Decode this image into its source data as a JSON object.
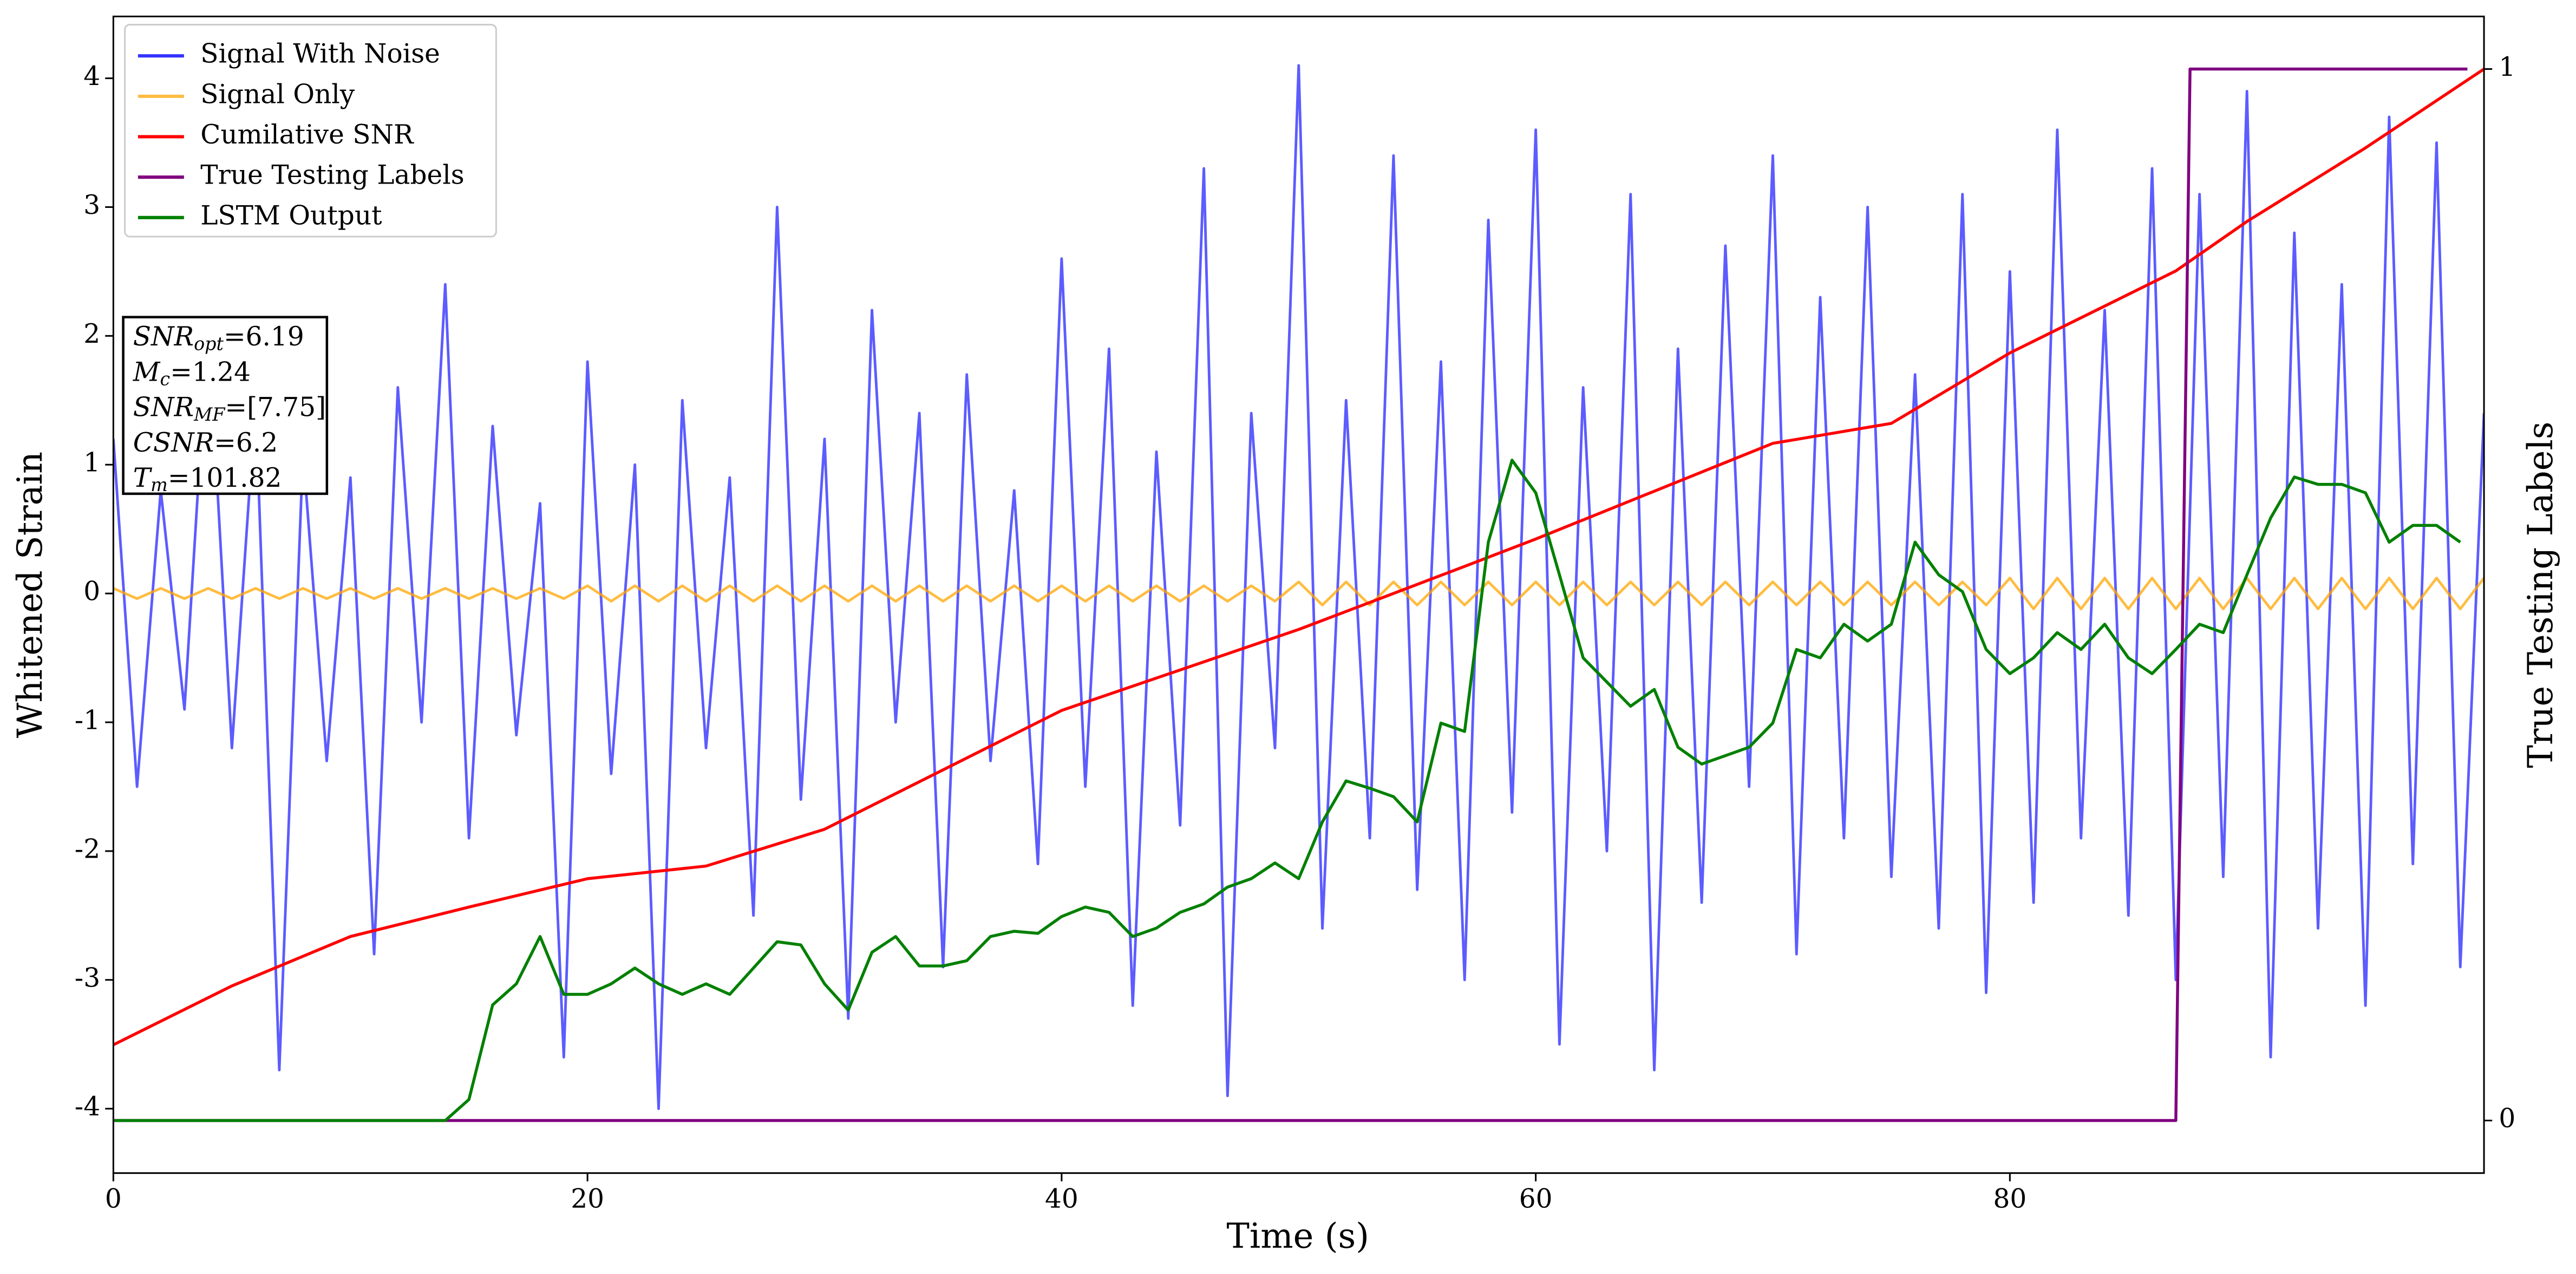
{
  "chart_data": {
    "type": "line",
    "xlabel": "Time (s)",
    "ylabel": "Whitened Strain",
    "y2label": "True Testing Labels",
    "xlim": [
      0,
      100
    ],
    "xticks": [
      0,
      20,
      40,
      60,
      80
    ],
    "ylim": [
      -4.5,
      4.48
    ],
    "yticks": [
      -4,
      -3,
      -2,
      -1,
      0,
      1,
      2,
      3,
      4
    ],
    "y2lim": [
      -0.05,
      1.05
    ],
    "y2ticks": [
      0,
      1
    ],
    "legend": "upper left",
    "x": [
      0,
      1,
      2,
      3,
      4,
      5,
      6,
      7,
      8,
      9,
      10,
      11,
      12,
      13,
      14,
      15,
      16,
      17,
      18,
      19,
      20,
      21,
      22,
      23,
      24,
      25,
      26,
      27,
      28,
      29,
      30,
      31,
      32,
      33,
      34,
      35,
      36,
      37,
      38,
      39,
      40,
      41,
      42,
      43,
      44,
      45,
      46,
      47,
      48,
      49,
      50,
      51,
      52,
      53,
      54,
      55,
      56,
      57,
      58,
      59,
      60,
      61,
      62,
      63,
      64,
      65,
      66,
      67,
      68,
      69,
      70,
      71,
      72,
      73,
      74,
      75,
      76,
      77,
      78,
      79,
      80,
      81,
      82,
      83,
      84,
      85,
      86,
      87,
      88,
      89,
      90,
      91,
      92,
      93,
      94,
      95,
      96,
      97,
      98,
      99,
      100
    ],
    "series": [
      {
        "name": "Signal With Noise",
        "color": "#3333ff",
        "values": [
          1.2,
          -1.5,
          0.8,
          -0.9,
          2.1,
          -1.2,
          1.5,
          -3.7,
          1.1,
          -1.3,
          0.9,
          -2.8,
          1.6,
          -1.0,
          2.4,
          -1.9,
          1.3,
          -1.1,
          0.7,
          -3.6,
          1.8,
          -1.4,
          1.0,
          -4.0,
          1.5,
          -1.2,
          0.9,
          -2.5,
          3.0,
          -1.6,
          1.2,
          -3.3,
          2.2,
          -1.0,
          1.4,
          -2.9,
          1.7,
          -1.3,
          0.8,
          -2.1,
          2.6,
          -1.5,
          1.9,
          -3.2,
          1.1,
          -1.8,
          3.3,
          -3.9,
          1.4,
          -1.2,
          4.1,
          -2.6,
          1.5,
          -1.9,
          3.4,
          -2.3,
          1.8,
          -3.0,
          2.9,
          -1.7,
          3.6,
          -3.5,
          1.6,
          -2.0,
          3.1,
          -3.7,
          1.9,
          -2.4,
          2.7,
          -1.5,
          3.4,
          -2.8,
          2.3,
          -1.9,
          3.0,
          -2.2,
          1.7,
          -2.6,
          3.1,
          -3.1,
          2.5,
          -2.4,
          3.6,
          -1.9,
          2.2,
          -2.5,
          3.3,
          -3.0,
          3.1,
          -2.2,
          3.9,
          -3.6,
          2.8,
          -2.6,
          2.4,
          -3.2,
          3.7,
          -2.1,
          3.5,
          -2.9,
          1.4
        ]
      },
      {
        "name": "Signal Only",
        "color": "#ffa500",
        "values": [
          0.04,
          -0.04,
          0.04,
          -0.04,
          0.04,
          -0.04,
          0.04,
          -0.04,
          0.04,
          -0.04,
          0.04,
          -0.04,
          0.04,
          -0.04,
          0.04,
          -0.04,
          0.04,
          -0.04,
          0.04,
          -0.04,
          0.06,
          -0.06,
          0.06,
          -0.06,
          0.06,
          -0.06,
          0.06,
          -0.06,
          0.06,
          -0.06,
          0.06,
          -0.06,
          0.06,
          -0.06,
          0.06,
          -0.06,
          0.06,
          -0.06,
          0.06,
          -0.06,
          0.06,
          -0.06,
          0.06,
          -0.06,
          0.06,
          -0.06,
          0.06,
          -0.06,
          0.06,
          -0.06,
          0.09,
          -0.09,
          0.09,
          -0.09,
          0.09,
          -0.09,
          0.09,
          -0.09,
          0.09,
          -0.09,
          0.09,
          -0.09,
          0.09,
          -0.09,
          0.09,
          -0.09,
          0.09,
          -0.09,
          0.09,
          -0.09,
          0.09,
          -0.09,
          0.09,
          -0.09,
          0.09,
          -0.09,
          0.09,
          -0.09,
          0.09,
          -0.09,
          0.12,
          -0.12,
          0.12,
          -0.12,
          0.12,
          -0.12,
          0.12,
          -0.12,
          0.12,
          -0.12,
          0.12,
          -0.12,
          0.12,
          -0.12,
          0.12,
          -0.12,
          0.12,
          -0.12,
          0.12,
          -0.12,
          0.12
        ]
      },
      {
        "name": "Cumilative SNR",
        "color": "#ff0000",
        "axis": "y2",
        "x": [
          0,
          5,
          10,
          15,
          20,
          25,
          30,
          40,
          50,
          57,
          60,
          70,
          75,
          80,
          87,
          90,
          95,
          100
        ],
        "values": [
          0.072,
          0.128,
          0.175,
          0.203,
          0.23,
          0.242,
          0.277,
          0.39,
          0.467,
          0.527,
          0.553,
          0.644,
          0.663,
          0.73,
          0.808,
          0.855,
          0.925,
          1.0
        ]
      },
      {
        "name": "True Testing Labels",
        "color": "#800080",
        "axis": "y2",
        "x": [
          0,
          87,
          87.6,
          99.3
        ],
        "values": [
          0,
          0,
          1,
          1
        ]
      },
      {
        "name": "LSTM Output",
        "color": "#008000",
        "axis": "y2",
        "values": [
          0,
          0,
          0,
          0,
          0,
          0,
          0,
          0,
          0,
          0,
          0,
          0,
          0,
          0,
          0,
          0.02,
          0.11,
          0.13,
          0.175,
          0.12,
          0.12,
          0.13,
          0.145,
          0.13,
          0.12,
          0.13,
          0.12,
          0.145,
          0.17,
          0.167,
          0.13,
          0.105,
          0.16,
          0.175,
          0.147,
          0.147,
          0.152,
          0.175,
          0.18,
          0.178,
          0.194,
          0.203,
          0.198,
          0.175,
          0.183,
          0.198,
          0.206,
          0.222,
          0.23,
          0.245,
          0.23,
          0.284,
          0.323,
          0.316,
          0.308,
          0.284,
          0.378,
          0.37,
          0.55,
          0.628,
          0.597,
          0.519,
          0.44,
          0.417,
          0.394,
          0.41,
          0.355,
          0.339,
          0.347,
          0.355,
          0.378,
          0.448,
          0.44,
          0.472,
          0.456,
          0.472,
          0.55,
          0.519,
          0.503,
          0.448,
          0.425,
          0.44,
          0.464,
          0.448,
          0.472,
          0.44,
          0.425,
          0.448,
          0.472,
          0.464,
          0.519,
          0.573,
          0.612,
          0.605,
          0.605,
          0.597,
          0.55,
          0.566,
          0.566,
          0.55,
          null
        ]
      }
    ],
    "annotation": [
      {
        "main": "SNR",
        "sub": "opt",
        "rest": "=6.19"
      },
      {
        "main": "M",
        "sub": "c",
        "rest": "=1.24"
      },
      {
        "main": "SNR",
        "sub": "MF",
        "rest": "=[7.75]"
      },
      {
        "main": "CSNR",
        "rest": "=6.2"
      },
      {
        "main": "T",
        "sub": "m",
        "rest": "=101.82"
      }
    ]
  }
}
